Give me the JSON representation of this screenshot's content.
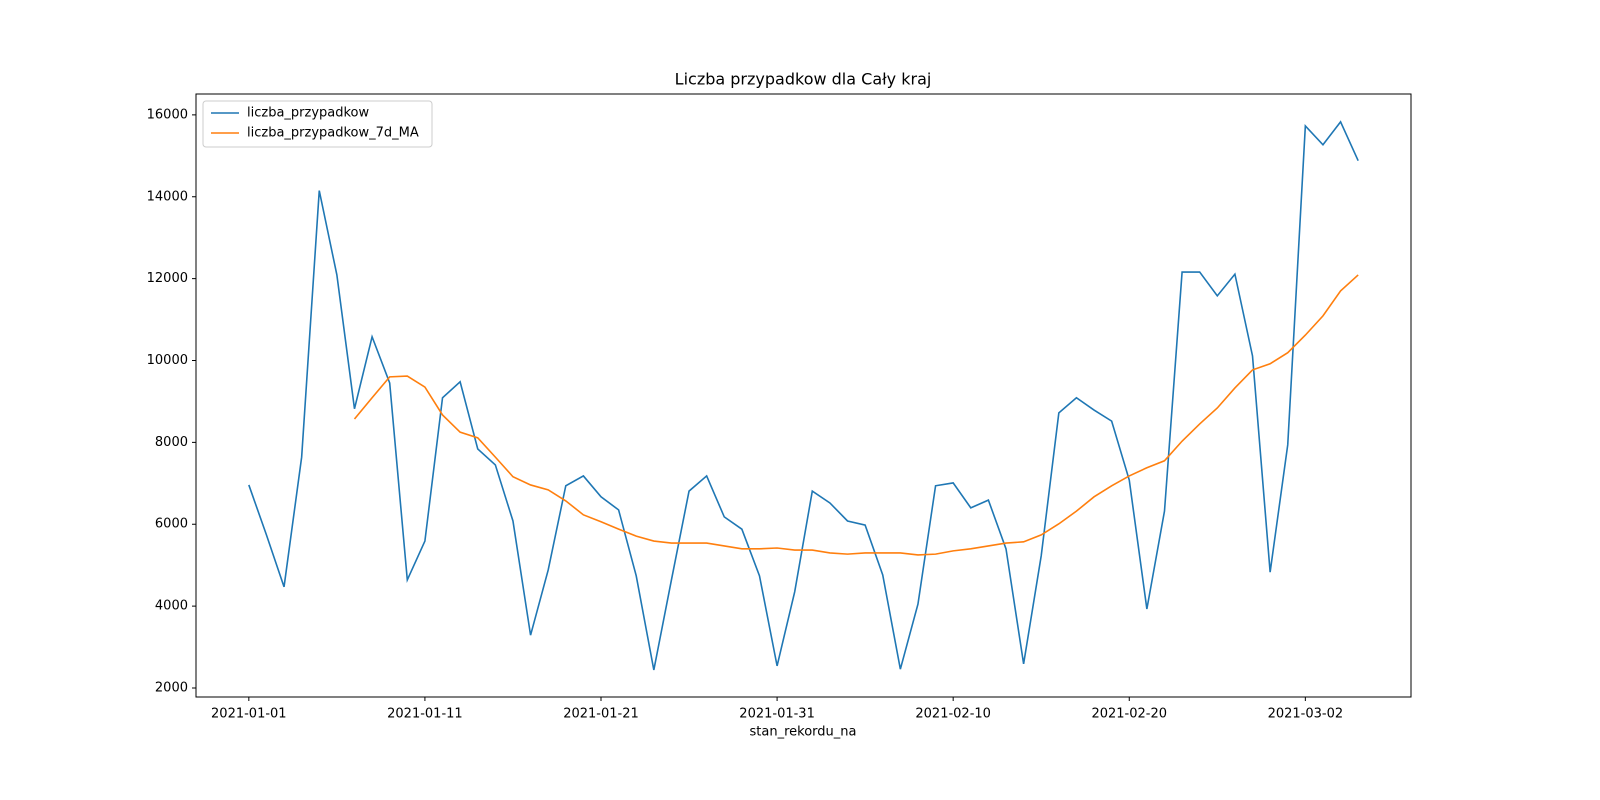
{
  "chart_data": {
    "type": "line",
    "title": "Liczba przypadkow dla Cały kraj",
    "xlabel": "stan_rekordu_na",
    "x": [
      "2021-01-01",
      "2021-01-02",
      "2021-01-03",
      "2021-01-04",
      "2021-01-05",
      "2021-01-06",
      "2021-01-07",
      "2021-01-08",
      "2021-01-09",
      "2021-01-10",
      "2021-01-11",
      "2021-01-12",
      "2021-01-13",
      "2021-01-14",
      "2021-01-15",
      "2021-01-16",
      "2021-01-17",
      "2021-01-18",
      "2021-01-19",
      "2021-01-20",
      "2021-01-21",
      "2021-01-22",
      "2021-01-23",
      "2021-01-24",
      "2021-01-25",
      "2021-01-26",
      "2021-01-27",
      "2021-01-28",
      "2021-01-29",
      "2021-01-30",
      "2021-01-31",
      "2021-02-01",
      "2021-02-02",
      "2021-02-03",
      "2021-02-04",
      "2021-02-05",
      "2021-02-06",
      "2021-02-07",
      "2021-02-08",
      "2021-02-09",
      "2021-02-10",
      "2021-02-11",
      "2021-02-12",
      "2021-02-13",
      "2021-02-14",
      "2021-02-15",
      "2021-02-16",
      "2021-02-17",
      "2021-02-18",
      "2021-02-19",
      "2021-02-20",
      "2021-02-21",
      "2021-02-22",
      "2021-02-23",
      "2021-02-24",
      "2021-02-25",
      "2021-02-26",
      "2021-02-27",
      "2021-02-28",
      "2021-03-01",
      "2021-03-02",
      "2021-03-03",
      "2021-03-04",
      "2021-03-05"
    ],
    "series": [
      {
        "name": "liczba_przypadkow",
        "color": "#1f77b4",
        "values": [
          6960,
          5740,
          4470,
          7640,
          14150,
          12090,
          8820,
          10580,
          9450,
          4640,
          5590,
          9090,
          9480,
          7840,
          7450,
          6080,
          3290,
          4880,
          6940,
          7180,
          6670,
          6350,
          4740,
          2440,
          4640,
          6810,
          7180,
          6180,
          5880,
          4740,
          2540,
          4350,
          6810,
          6520,
          6080,
          5980,
          4760,
          2460,
          4050,
          6940,
          7010,
          6400,
          6590,
          5400,
          2590,
          5230,
          8720,
          9090,
          8790,
          8520,
          7080,
          3930,
          6320,
          12160,
          12160,
          11580,
          12110,
          10110,
          4830,
          7940,
          15730,
          15270,
          15830,
          14880
        ]
      },
      {
        "name": "liczba_przypadkow_7d_MA",
        "color": "#ff7f0e",
        "values": [
          null,
          null,
          null,
          null,
          null,
          null,
          8570,
          9090,
          9600,
          9620,
          9350,
          8670,
          8250,
          8110,
          7640,
          7160,
          6960,
          6840,
          6570,
          6230,
          6060,
          5880,
          5710,
          5590,
          5540,
          5540,
          5540,
          5470,
          5400,
          5400,
          5420,
          5370,
          5370,
          5300,
          5270,
          5300,
          5300,
          5300,
          5250,
          5270,
          5350,
          5400,
          5470,
          5540,
          5570,
          5740,
          6010,
          6320,
          6670,
          6940,
          7180,
          7380,
          7550,
          8030,
          8450,
          8840,
          9330,
          9770,
          9920,
          10190,
          10620,
          11090,
          11700,
          12090
        ]
      }
    ],
    "xlim": [
      "2020-12-29",
      "2021-03-08"
    ],
    "xticks": [
      "2021-01-01",
      "2021-01-11",
      "2021-01-21",
      "2021-01-31",
      "2021-02-10",
      "2021-02-20",
      "2021-03-02"
    ],
    "ylim": [
      1780,
      16510
    ],
    "yticks": [
      2000,
      4000,
      6000,
      8000,
      10000,
      12000,
      14000,
      16000
    ],
    "legend": "upper left"
  }
}
